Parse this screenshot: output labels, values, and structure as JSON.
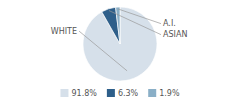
{
  "chart_data": {
    "type": "pie",
    "categories": [
      "WHITE",
      "ASIAN",
      "A.I."
    ],
    "values": [
      91.8,
      6.3,
      1.9
    ],
    "value_labels": [
      "91.8%",
      "6.3%",
      "1.9%"
    ],
    "colors": [
      "#d6e0ea",
      "#2e5f8a",
      "#8aafc7"
    ],
    "legend": "bottom"
  }
}
